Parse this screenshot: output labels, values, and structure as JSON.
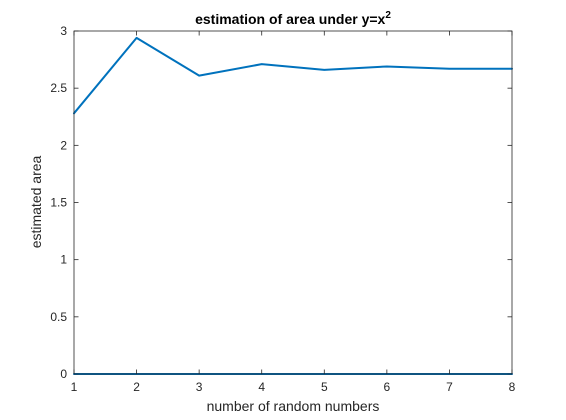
{
  "chart_data": {
    "type": "line",
    "title": "estimation of area under y=x",
    "title_superscript": "2",
    "xlabel": "number of random numbers",
    "ylabel": "estimated area",
    "xlim": [
      1,
      8
    ],
    "ylim": [
      0,
      3
    ],
    "xticks": [
      1,
      2,
      3,
      4,
      5,
      6,
      7,
      8
    ],
    "xtick_labels": [
      "1",
      "2",
      "3",
      "4",
      "5",
      "6",
      "7",
      "8"
    ],
    "yticks": [
      0,
      0.5,
      1,
      1.5,
      2,
      2.5,
      3
    ],
    "ytick_labels": [
      "0",
      "0.5",
      "1",
      "1.5",
      "2",
      "2.5",
      "3"
    ],
    "grid": false,
    "line_color": "#0072bd",
    "series": [
      {
        "x": [
          1,
          2,
          3,
          4,
          5,
          6,
          7,
          8
        ],
        "values": [
          2.28,
          2.94,
          2.61,
          2.71,
          2.66,
          2.69,
          2.67,
          2.67
        ]
      },
      {
        "x": [
          1,
          8
        ],
        "values": [
          0,
          0
        ]
      }
    ]
  }
}
